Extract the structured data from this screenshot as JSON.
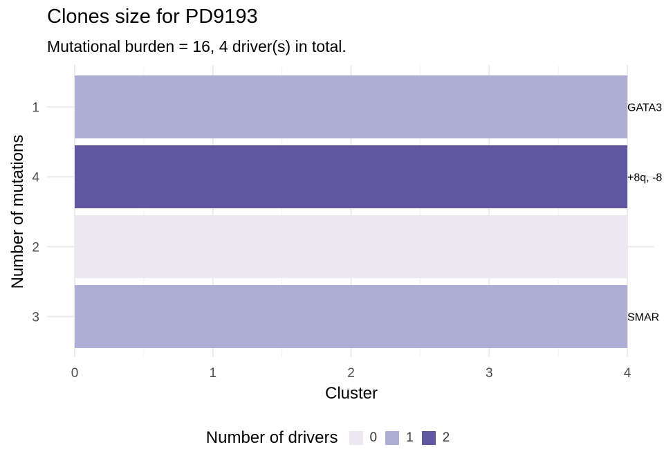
{
  "chart_data": {
    "type": "bar",
    "orientation": "horizontal",
    "title": "Clones size for PD9193",
    "subtitle": "Mutational burden = 16, 4 driver(s) in total.",
    "xlabel": "Cluster",
    "ylabel": "Number of mutations",
    "xlim": [
      0,
      4
    ],
    "xticks": [
      "0",
      "1",
      "2",
      "3",
      "4"
    ],
    "bars": [
      {
        "category": "1",
        "value": 4,
        "drivers": 1,
        "label": "GATA3"
      },
      {
        "category": "4",
        "value": 4,
        "drivers": 2,
        "label": "+8q, -8"
      },
      {
        "category": "2",
        "value": 4,
        "drivers": 0,
        "label": ""
      },
      {
        "category": "3",
        "value": 4,
        "drivers": 1,
        "label": "SMAR"
      }
    ],
    "grid": true,
    "legend": {
      "title": "Number of drivers",
      "position": "bottom",
      "items": [
        {
          "label": "0",
          "color": "#EBE8F2"
        },
        {
          "label": "1",
          "color": "#AEAED5"
        },
        {
          "label": "2",
          "color": "#6157A0"
        }
      ]
    }
  }
}
